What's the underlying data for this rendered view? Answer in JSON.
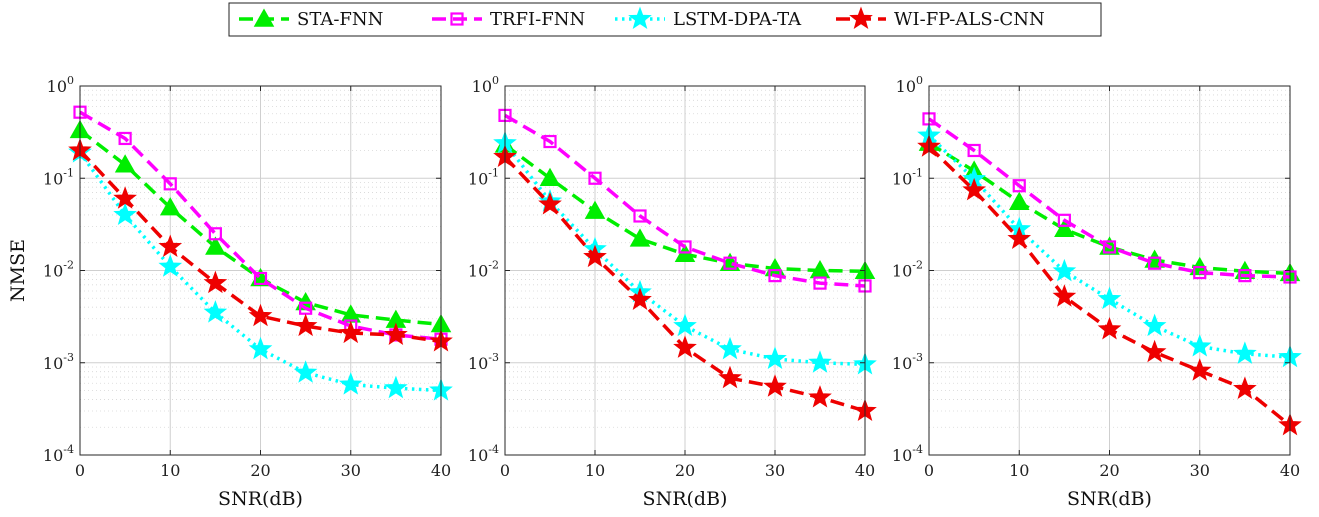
{
  "legend": {
    "placement": "top-center",
    "entries": [
      "STA-FNN",
      "TRFI-FNN",
      "LSTM-DPA-TA",
      "WI-FP-ALS-CNN"
    ]
  },
  "colors": {
    "STA-FNN": "#00ee00",
    "TRFI-FNN": "#ff00ff",
    "LSTM-DPA-TA": "#00ffff",
    "WI-FP-ALS-CNN": "#ee0000"
  },
  "markers": {
    "STA-FNN": "triangle",
    "TRFI-FNN": "square",
    "LSTM-DPA-TA": "star",
    "WI-FP-ALS-CNN": "star"
  },
  "line_styles": {
    "STA-FNN": "dashed",
    "TRFI-FNN": "dashed",
    "LSTM-DPA-TA": "dotted",
    "WI-FP-ALS-CNN": "dashed"
  },
  "chart_data": [
    {
      "type": "line",
      "xlabel": "SNR(dB)",
      "ylabel": "NMSE",
      "xscale": "linear",
      "yscale": "log",
      "xlim": [
        0,
        40
      ],
      "ylim": [
        0.0001,
        1
      ],
      "xticks": [
        "0",
        "10",
        "20",
        "30",
        "40"
      ],
      "yticks": [
        "10^0",
        "10^-1",
        "10^-2",
        "10^-3",
        "10^-4"
      ],
      "grid": true,
      "x": [
        0,
        5,
        10,
        15,
        20,
        25,
        30,
        35,
        40
      ],
      "series": [
        {
          "name": "STA-FNN",
          "values": [
            0.33,
            0.14,
            0.048,
            0.018,
            0.0082,
            0.0045,
            0.0033,
            0.0029,
            0.0026
          ]
        },
        {
          "name": "TRFI-FNN",
          "values": [
            0.52,
            0.27,
            0.087,
            0.025,
            0.0082,
            0.0039,
            0.0025,
            0.002,
            0.0018
          ]
        },
        {
          "name": "LSTM-DPA-TA",
          "values": [
            0.19,
            0.04,
            0.011,
            0.0035,
            0.0014,
            0.00078,
            0.00058,
            0.00053,
            0.0005
          ]
        },
        {
          "name": "WI-FP-ALS-CNN",
          "values": [
            0.2,
            0.06,
            0.018,
            0.0073,
            0.0032,
            0.0025,
            0.0021,
            0.002,
            0.0017
          ]
        }
      ]
    },
    {
      "type": "line",
      "xlabel": "SNR(dB)",
      "ylabel": "",
      "xscale": "linear",
      "yscale": "log",
      "xlim": [
        0,
        40
      ],
      "ylim": [
        0.0001,
        1
      ],
      "xticks": [
        "0",
        "10",
        "20",
        "30",
        "40"
      ],
      "yticks": [
        "10^0",
        "10^-1",
        "10^-2",
        "10^-3",
        "10^-4"
      ],
      "grid": true,
      "x": [
        0,
        5,
        10,
        15,
        20,
        25,
        30,
        35,
        40
      ],
      "series": [
        {
          "name": "STA-FNN",
          "values": [
            0.23,
            0.1,
            0.044,
            0.022,
            0.015,
            0.012,
            0.0105,
            0.01,
            0.0098
          ]
        },
        {
          "name": "TRFI-FNN",
          "values": [
            0.48,
            0.25,
            0.1,
            0.039,
            0.018,
            0.012,
            0.0088,
            0.0073,
            0.0068
          ]
        },
        {
          "name": "LSTM-DPA-TA",
          "values": [
            0.24,
            0.056,
            0.017,
            0.0058,
            0.0025,
            0.0014,
            0.0011,
            0.001,
            0.00096
          ]
        },
        {
          "name": "WI-FP-ALS-CNN",
          "values": [
            0.17,
            0.052,
            0.014,
            0.0048,
            0.00145,
            0.00068,
            0.00055,
            0.00042,
            0.0003
          ]
        }
      ]
    },
    {
      "type": "line",
      "xlabel": "SNR(dB)",
      "ylabel": "",
      "xscale": "linear",
      "yscale": "log",
      "xlim": [
        0,
        40
      ],
      "ylim": [
        0.0001,
        1
      ],
      "xticks": [
        "0",
        "10",
        "20",
        "30",
        "40"
      ],
      "yticks": [
        "10^0",
        "10^-1",
        "10^-2",
        "10^-3",
        "10^-4"
      ],
      "grid": true,
      "x": [
        0,
        5,
        10,
        15,
        20,
        25,
        30,
        35,
        40
      ],
      "series": [
        {
          "name": "STA-FNN",
          "values": [
            0.24,
            0.12,
            0.055,
            0.028,
            0.018,
            0.013,
            0.0108,
            0.0098,
            0.0093
          ]
        },
        {
          "name": "TRFI-FNN",
          "values": [
            0.44,
            0.2,
            0.083,
            0.035,
            0.018,
            0.012,
            0.0095,
            0.0088,
            0.0085
          ]
        },
        {
          "name": "LSTM-DPA-TA",
          "values": [
            0.29,
            0.098,
            0.028,
            0.0098,
            0.0049,
            0.0025,
            0.0015,
            0.00125,
            0.00115
          ]
        },
        {
          "name": "WI-FP-ALS-CNN",
          "values": [
            0.22,
            0.074,
            0.022,
            0.0052,
            0.0023,
            0.0013,
            0.00082,
            0.00052,
            0.00021
          ]
        }
      ]
    }
  ]
}
